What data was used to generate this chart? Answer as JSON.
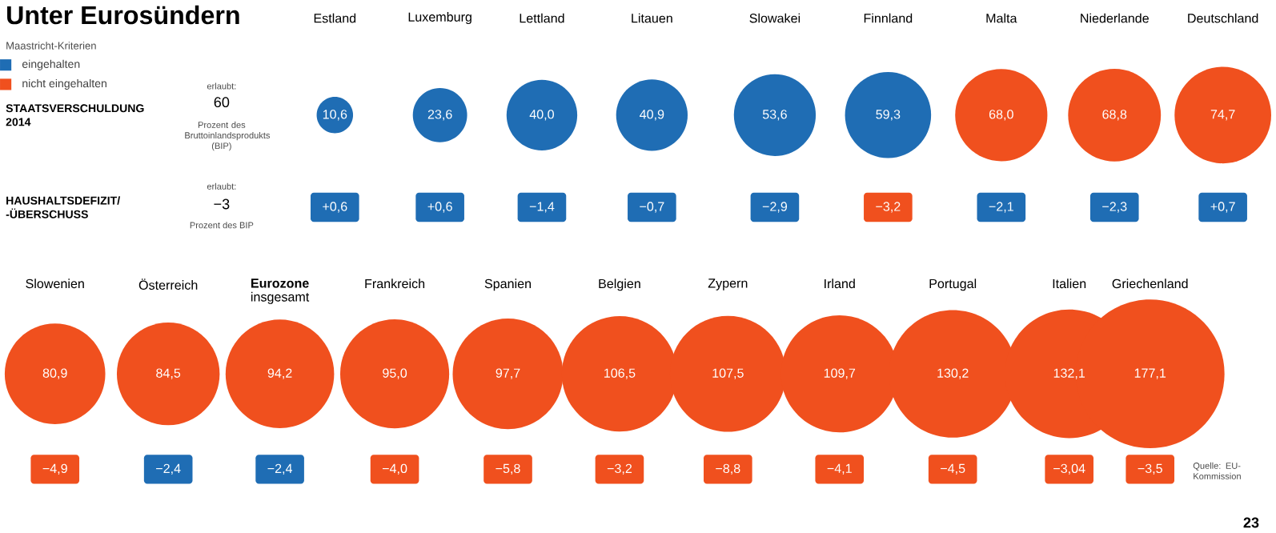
{
  "chart_data": {
    "type": "other",
    "title": "Unter Eurosündern",
    "legend_title": "Maastricht-Kriterien",
    "categories": [
      "Estland",
      "Luxemburg",
      "Lettland",
      "Litauen",
      "Slowakei",
      "Finnland",
      "Malta",
      "Niederlande",
      "Deutschland",
      "Slowenien",
      "Österreich",
      "**Eurozone** insgesamt",
      "Frankreich",
      "Spanien",
      "Belgien",
      "Zypern",
      "Irland",
      "Portugal",
      "Italien",
      "Griechenland"
    ],
    "series": [
      {
        "marker": "circle",
        "values": [
          10.6,
          23.6,
          40.0,
          40.9,
          53.6,
          59.3,
          68.0,
          68.8,
          74.7,
          80.9,
          84.5,
          94.2,
          95.0,
          97.7,
          106.5,
          107.5,
          109.7,
          130.2,
          132.1,
          177.1
        ],
        "value_labels": [
          "10,6",
          "23,6",
          "40,0",
          "40,9",
          "53,6",
          "59,3",
          "68,0",
          "68,8",
          "74,7",
          "80,9",
          "84,5",
          "94,2",
          "95,0",
          "97,7",
          "106,5",
          "107,5",
          "109,7",
          "130,2",
          "132,1",
          "177,1"
        ],
        "colors": [
          "#1f6db4",
          "#1f6db4",
          "#1f6db4",
          "#1f6db4",
          "#1f6db4",
          "#1f6db4",
          "#f0501e",
          "#f0501e",
          "#f0501e",
          "#f0501e",
          "#f0501e",
          "#f0501e",
          "#f0501e",
          "#f0501e",
          "#f0501e",
          "#f0501e",
          "#f0501e",
          "#f0501e",
          "#f0501e",
          "#f0501e"
        ]
      },
      {
        "marker": "square",
        "values": [
          0.6,
          0.6,
          -1.4,
          -0.7,
          -2.9,
          -3.2,
          -2.1,
          -2.3,
          0.7,
          -4.9,
          -2.4,
          -2.4,
          -4.0,
          -5.8,
          -3.2,
          -8.8,
          -4.1,
          -4.5,
          -3.04,
          -3.5
        ],
        "value_labels": [
          "+0,6",
          "+0,6",
          "−1,4",
          "−0,7",
          "−2,9",
          "−3,2",
          "−2,1",
          "−2,3",
          "+0,7",
          "−4,9",
          "−2,4",
          "−2,4",
          "−4,0",
          "−5,8",
          "−3,2",
          "−8,8",
          "−4,1",
          "−4,5",
          "−3,04",
          "−3,5"
        ],
        "colors": [
          "#1f6db4",
          "#1f6db4",
          "#1f6db4",
          "#1f6db4",
          "#1f6db4",
          "#f0501e",
          "#1f6db4",
          "#1f6db4",
          "#1f6db4",
          "#f0501e",
          "#1f6db4",
          "#1f6db4",
          "#f0501e",
          "#f0501e",
          "#f0501e",
          "#f0501e",
          "#f0501e",
          "#f0501e",
          "#f0501e",
          "#f0501e"
        ]
      }
    ],
    "annotations": [
      "eingehalten",
      "nicht eingehalten",
      "erlaubt:",
      "Prozent des Bruttoinlandsprodukts (BIP)",
      "erlaubt:",
      "Prozent des BIP",
      "Quelle: EU-Kommission",
      "23",
      "STAATSVERSCHULDUNG 2014",
      "HAUSHALTSDEFIZIT/ -ÜBERSCHUSS",
      "60",
      "−3"
    ]
  }
}
